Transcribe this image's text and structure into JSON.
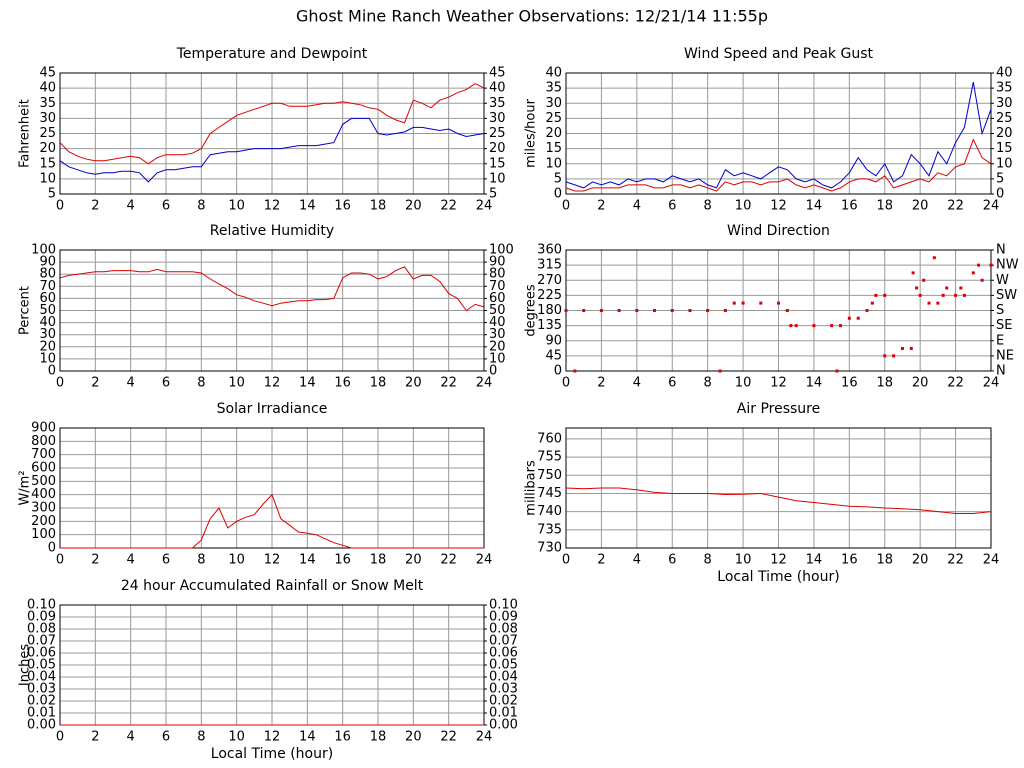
{
  "title": "Ghost Mine Ranch Weather Observations: 12/21/14 11:55p",
  "chart_data": [
    {
      "type": "line",
      "title": "Temperature and Dewpoint",
      "ylabel": "Fahrenheit",
      "x": [
        0,
        0.5,
        1,
        1.5,
        2,
        2.5,
        3,
        3.5,
        4,
        4.5,
        5,
        5.5,
        6,
        6.5,
        7,
        7.5,
        8,
        8.5,
        9,
        9.5,
        10,
        10.5,
        11,
        11.5,
        12,
        12.5,
        13,
        13.5,
        14,
        14.5,
        15,
        15.5,
        16,
        16.5,
        17,
        17.5,
        18,
        18.5,
        19,
        19.5,
        20,
        20.5,
        21,
        21.5,
        22,
        22.5,
        23,
        23.5,
        24
      ],
      "series": [
        {
          "color": "#dd0000",
          "values": [
            22,
            19,
            17.5,
            16.5,
            16,
            16,
            16.5,
            17,
            17.5,
            17,
            15,
            17,
            18,
            18,
            18,
            18.5,
            20,
            25,
            27,
            29,
            31,
            32,
            33,
            34,
            35,
            35,
            34,
            34,
            34,
            34.5,
            35,
            35,
            35.5,
            35,
            34.5,
            33.5,
            33,
            31,
            29.5,
            28.5,
            36,
            35,
            33.5,
            36,
            37,
            38.5,
            39.5,
            41.5,
            40
          ]
        },
        {
          "color": "#0000cc",
          "values": [
            16,
            14,
            13,
            12,
            11.5,
            12,
            12,
            12.5,
            12.5,
            12,
            9,
            12,
            13,
            13,
            13.5,
            14,
            14,
            18,
            18.5,
            19,
            19,
            19.5,
            20,
            20,
            20,
            20,
            20.5,
            21,
            21,
            21,
            21.5,
            22,
            28,
            30,
            30,
            30,
            25,
            24.5,
            25,
            25.5,
            27,
            27,
            26.5,
            26,
            26.5,
            25,
            24,
            24.5,
            25
          ]
        }
      ],
      "xlim": [
        0,
        24
      ],
      "xticks": [
        0,
        2,
        4,
        6,
        8,
        10,
        12,
        14,
        16,
        18,
        20,
        22,
        24
      ],
      "ylim": [
        5,
        45
      ],
      "yticks": [
        5,
        10,
        15,
        20,
        25,
        30,
        35,
        40,
        45
      ],
      "y2lim": [
        5,
        45
      ],
      "y2ticks": [
        5,
        10,
        15,
        20,
        25,
        30,
        35,
        40,
        45
      ],
      "grid": true
    },
    {
      "type": "line",
      "title": "Wind Speed and Peak Gust",
      "ylabel": "miles/hour",
      "x": [
        0,
        0.5,
        1,
        1.5,
        2,
        2.5,
        3,
        3.5,
        4,
        4.5,
        5,
        5.5,
        6,
        6.5,
        7,
        7.5,
        8,
        8.5,
        9,
        9.5,
        10,
        10.5,
        11,
        11.5,
        12,
        12.5,
        13,
        13.5,
        14,
        14.5,
        15,
        15.5,
        16,
        16.5,
        17,
        17.5,
        18,
        18.5,
        19,
        19.5,
        20,
        20.5,
        21,
        21.5,
        22,
        22.5,
        23,
        23.5,
        24
      ],
      "series": [
        {
          "color": "#0000cc",
          "values": [
            4,
            3,
            2,
            4,
            3,
            4,
            3,
            5,
            4,
            5,
            5,
            4,
            6,
            5,
            4,
            5,
            3,
            2,
            8,
            6,
            7,
            6,
            5,
            7,
            9,
            8,
            5,
            4,
            5,
            3,
            2,
            4,
            7,
            12,
            8,
            6,
            10,
            4,
            6,
            13,
            10,
            6,
            14,
            10,
            17,
            22,
            37,
            20,
            28
          ]
        },
        {
          "color": "#dd0000",
          "values": [
            2,
            1,
            1,
            2,
            2,
            2,
            2,
            3,
            3,
            3,
            2,
            2,
            3,
            3,
            2,
            3,
            2,
            1,
            4,
            3,
            4,
            4,
            3,
            4,
            4,
            5,
            3,
            2,
            3,
            2,
            1,
            2,
            4,
            5,
            5,
            4,
            6,
            2,
            3,
            4,
            5,
            4,
            7,
            6,
            9,
            10,
            18,
            12,
            10
          ]
        }
      ],
      "xlim": [
        0,
        24
      ],
      "xticks": [
        0,
        2,
        4,
        6,
        8,
        10,
        12,
        14,
        16,
        18,
        20,
        22,
        24
      ],
      "ylim": [
        0,
        40
      ],
      "yticks": [
        0,
        5,
        10,
        15,
        20,
        25,
        30,
        35,
        40
      ],
      "y2lim": [
        0,
        40
      ],
      "y2ticks": [
        0,
        5,
        10,
        15,
        20,
        25,
        30,
        35,
        40
      ],
      "grid": true
    },
    {
      "type": "line",
      "title": "Relative Humidity",
      "ylabel": "Percent",
      "x": [
        0,
        0.5,
        1,
        1.5,
        2,
        2.5,
        3,
        3.5,
        4,
        4.5,
        5,
        5.5,
        6,
        6.5,
        7,
        7.5,
        8,
        8.5,
        9,
        9.5,
        10,
        10.5,
        11,
        11.5,
        12,
        12.5,
        13,
        13.5,
        14,
        14.5,
        15,
        15.5,
        16,
        16.5,
        17,
        17.5,
        18,
        18.5,
        19,
        19.5,
        20,
        20.5,
        21,
        21.5,
        22,
        22.5,
        23,
        23.5,
        24
      ],
      "series": [
        {
          "color": "#dd0000",
          "values": [
            77,
            79,
            80,
            81,
            82,
            82,
            83,
            83,
            83,
            82,
            82,
            84,
            82,
            82,
            82,
            82,
            81,
            76,
            72,
            68,
            63,
            61,
            58,
            56,
            54,
            56,
            57,
            58,
            58,
            59,
            59,
            60,
            77,
            81,
            81,
            80,
            76,
            78,
            83,
            86,
            76,
            79,
            79,
            74,
            64,
            60,
            50,
            55,
            53
          ]
        }
      ],
      "xlim": [
        0,
        24
      ],
      "xticks": [
        0,
        2,
        4,
        6,
        8,
        10,
        12,
        14,
        16,
        18,
        20,
        22,
        24
      ],
      "ylim": [
        0,
        100
      ],
      "yticks": [
        0,
        10,
        20,
        30,
        40,
        50,
        60,
        70,
        80,
        90,
        100
      ],
      "y2lim": [
        0,
        100
      ],
      "y2ticks": [
        0,
        10,
        20,
        30,
        40,
        50,
        60,
        70,
        80,
        90,
        100
      ],
      "grid": true
    },
    {
      "type": "scatter",
      "title": "Wind Direction",
      "ylabel": "degrees",
      "color": "#dd0000",
      "x": [
        0,
        0.5,
        1,
        2,
        3,
        4,
        5,
        6,
        7,
        8,
        8.7,
        9,
        9.5,
        10,
        11,
        12,
        12.5,
        12.7,
        13,
        14,
        15,
        15.3,
        15.5,
        16,
        16.5,
        17,
        17.3,
        17.5,
        18,
        18,
        18.5,
        19,
        19.5,
        19.6,
        19.8,
        20,
        20.2,
        20.5,
        20.8,
        21,
        21.3,
        21.5,
        22,
        22.3,
        22.5,
        23,
        23.3,
        23.5,
        24
      ],
      "values": [
        180,
        0,
        180,
        180,
        180,
        180,
        180,
        180,
        180,
        180,
        0,
        180,
        202,
        202,
        202,
        202,
        180,
        135,
        135,
        135,
        135,
        0,
        135,
        157,
        157,
        180,
        202,
        225,
        225,
        45,
        45,
        67,
        67,
        292,
        247,
        225,
        270,
        202,
        337,
        202,
        225,
        247,
        225,
        247,
        225,
        292,
        315,
        270,
        315
      ],
      "xlim": [
        0,
        24
      ],
      "xticks": [
        0,
        2,
        4,
        6,
        8,
        10,
        12,
        14,
        16,
        18,
        20,
        22,
        24
      ],
      "ylim": [
        0,
        360
      ],
      "yticks": [
        0,
        45,
        90,
        135,
        180,
        225,
        270,
        315,
        360
      ],
      "y2lim": [
        0,
        360
      ],
      "y2ticks": [
        {
          "value": 0,
          "label": "N"
        },
        {
          "value": 45,
          "label": "NE"
        },
        {
          "value": 90,
          "label": "E"
        },
        {
          "value": 135,
          "label": "SE"
        },
        {
          "value": 180,
          "label": "S"
        },
        {
          "value": 225,
          "label": "SW"
        },
        {
          "value": 270,
          "label": "W"
        },
        {
          "value": 315,
          "label": "NW"
        },
        {
          "value": 360,
          "label": "N"
        }
      ],
      "grid": true
    },
    {
      "type": "line",
      "title": "Solar Irradiance",
      "ylabel": "W/m²",
      "x": [
        0,
        0.5,
        1,
        1.5,
        2,
        2.5,
        3,
        3.5,
        4,
        4.5,
        5,
        5.5,
        6,
        6.5,
        7,
        7.5,
        8,
        8.5,
        9,
        9.5,
        10,
        10.5,
        11,
        11.5,
        12,
        12.5,
        13,
        13.5,
        14,
        14.5,
        15,
        15.5,
        16,
        16.5,
        17,
        17.5,
        18,
        18.5,
        19,
        19.5,
        20,
        20.5,
        21,
        21.5,
        22,
        22.5,
        23,
        23.5,
        24
      ],
      "series": [
        {
          "color": "#dd0000",
          "values": [
            0,
            0,
            0,
            0,
            0,
            0,
            0,
            0,
            0,
            0,
            0,
            0,
            0,
            0,
            0,
            0,
            60,
            220,
            300,
            150,
            200,
            230,
            250,
            330,
            400,
            220,
            170,
            120,
            110,
            100,
            70,
            40,
            20,
            0,
            0,
            0,
            0,
            0,
            0,
            0,
            0,
            0,
            0,
            0,
            0,
            0,
            0,
            0,
            0
          ]
        }
      ],
      "xlim": [
        0,
        24
      ],
      "xticks": [
        0,
        2,
        4,
        6,
        8,
        10,
        12,
        14,
        16,
        18,
        20,
        22,
        24
      ],
      "ylim": [
        0,
        900
      ],
      "yticks": [
        0,
        100,
        200,
        300,
        400,
        500,
        600,
        700,
        800,
        900
      ],
      "grid": true
    },
    {
      "type": "line",
      "title": "Air Pressure",
      "ylabel": "millibars",
      "xlabel": "Local Time (hour)",
      "x": [
        0,
        1,
        2,
        3,
        4,
        5,
        6,
        7,
        8,
        9,
        10,
        11,
        12,
        13,
        14,
        15,
        16,
        17,
        18,
        19,
        20,
        21,
        22,
        23,
        24
      ],
      "series": [
        {
          "color": "#dd0000",
          "values": [
            746.5,
            746.3,
            746.5,
            746.5,
            746,
            745.3,
            745,
            745,
            745,
            744.7,
            744.8,
            745,
            744,
            743,
            742.5,
            742,
            741.5,
            741.3,
            741,
            740.8,
            740.5,
            740,
            739.5,
            739.5,
            740
          ]
        }
      ],
      "xlim": [
        0,
        24
      ],
      "xticks": [
        0,
        2,
        4,
        6,
        8,
        10,
        12,
        14,
        16,
        18,
        20,
        22,
        24
      ],
      "ylim": [
        730,
        763
      ],
      "yticks": [
        730,
        735,
        740,
        745,
        750,
        755,
        760
      ],
      "grid": true
    },
    {
      "type": "line",
      "title": "24 hour Accumulated Rainfall or Snow Melt",
      "ylabel": "Inches",
      "xlabel": "Local Time (hour)",
      "x": [
        0,
        24
      ],
      "series": [
        {
          "color": "#dd0000",
          "values": [
            0,
            0
          ]
        }
      ],
      "xlim": [
        0,
        24
      ],
      "xticks": [
        0,
        2,
        4,
        6,
        8,
        10,
        12,
        14,
        16,
        18,
        20,
        22,
        24
      ],
      "ylim": [
        0,
        0.1
      ],
      "yticks": [
        {
          "value": 0,
          "label": "0.00"
        },
        {
          "value": 0.01,
          "label": "0.01"
        },
        {
          "value": 0.02,
          "label": "0.02"
        },
        {
          "value": 0.03,
          "label": "0.03"
        },
        {
          "value": 0.04,
          "label": "0.04"
        },
        {
          "value": 0.05,
          "label": "0.05"
        },
        {
          "value": 0.06,
          "label": "0.06"
        },
        {
          "value": 0.07,
          "label": "0.07"
        },
        {
          "value": 0.08,
          "label": "0.08"
        },
        {
          "value": 0.09,
          "label": "0.09"
        },
        {
          "value": 0.1,
          "label": "0.10"
        }
      ],
      "y2lim": [
        0,
        0.1
      ],
      "y2ticks": [
        {
          "value": 0,
          "label": "0.00"
        },
        {
          "value": 0.01,
          "label": "0.01"
        },
        {
          "value": 0.02,
          "label": "0.02"
        },
        {
          "value": 0.03,
          "label": "0.03"
        },
        {
          "value": 0.04,
          "label": "0.04"
        },
        {
          "value": 0.05,
          "label": "0.05"
        },
        {
          "value": 0.06,
          "label": "0.06"
        },
        {
          "value": 0.07,
          "label": "0.07"
        },
        {
          "value": 0.08,
          "label": "0.08"
        },
        {
          "value": 0.09,
          "label": "0.09"
        },
        {
          "value": 0.1,
          "label": "0.10"
        }
      ],
      "grid": true
    }
  ]
}
